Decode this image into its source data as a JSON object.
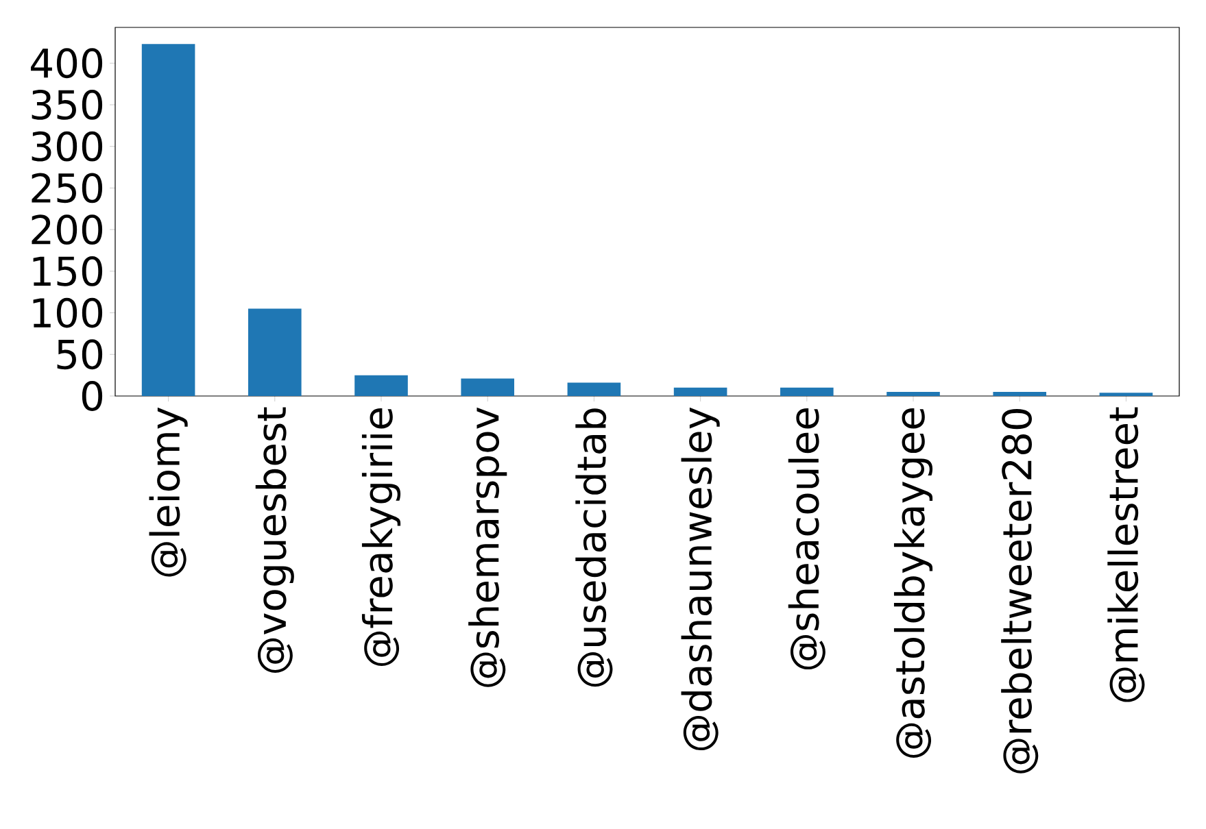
{
  "chart_data": {
    "type": "bar",
    "categories": [
      "@leiomy",
      "@voguesbest",
      "@freakygiriie",
      "@shemarspov",
      "@usedacidtab",
      "@dashaunwesley",
      "@sheacoulee",
      "@astoldbykaygee",
      "@rebeltweeter280",
      "@mikellestreet"
    ],
    "values": [
      423,
      105,
      25,
      21,
      16,
      10,
      10,
      5,
      5,
      4
    ],
    "color": "#1f77b4",
    "ylim": [
      0,
      443
    ],
    "yticks": [
      0,
      50,
      100,
      150,
      200,
      250,
      300,
      350,
      400
    ]
  }
}
